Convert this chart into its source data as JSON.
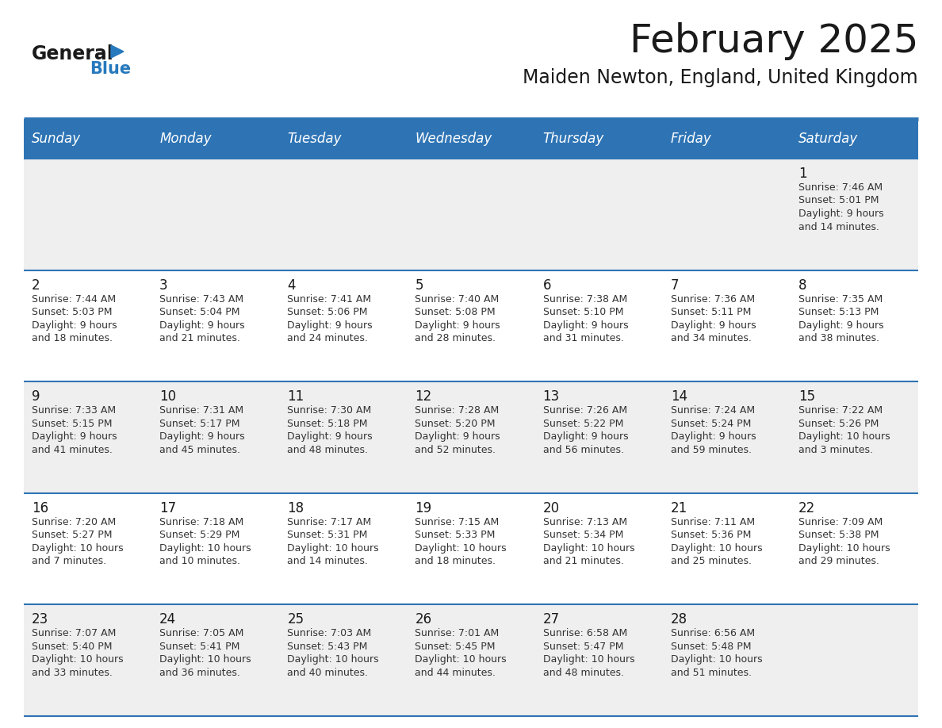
{
  "title": "February 2025",
  "subtitle": "Maiden Newton, England, United Kingdom",
  "header_color": "#2E74B5",
  "header_text_color": "#FFFFFF",
  "day_names": [
    "Sunday",
    "Monday",
    "Tuesday",
    "Wednesday",
    "Thursday",
    "Friday",
    "Saturday"
  ],
  "row_line_color": "#2E74B5",
  "text_color": "#333333",
  "day_number_color": "#1a1a1a",
  "logo_general_color": "#1a1a1a",
  "logo_blue_color": "#2779BD",
  "cell_bg_light": "#EFEFEF",
  "cell_bg_white": "#FFFFFF",
  "calendar_data": [
    [
      null,
      null,
      null,
      null,
      null,
      null,
      {
        "day": 1,
        "sunrise": "7:46 AM",
        "sunset": "5:01 PM",
        "daylight": "9 hours and 14 minutes."
      }
    ],
    [
      {
        "day": 2,
        "sunrise": "7:44 AM",
        "sunset": "5:03 PM",
        "daylight": "9 hours and 18 minutes."
      },
      {
        "day": 3,
        "sunrise": "7:43 AM",
        "sunset": "5:04 PM",
        "daylight": "9 hours and 21 minutes."
      },
      {
        "day": 4,
        "sunrise": "7:41 AM",
        "sunset": "5:06 PM",
        "daylight": "9 hours and 24 minutes."
      },
      {
        "day": 5,
        "sunrise": "7:40 AM",
        "sunset": "5:08 PM",
        "daylight": "9 hours and 28 minutes."
      },
      {
        "day": 6,
        "sunrise": "7:38 AM",
        "sunset": "5:10 PM",
        "daylight": "9 hours and 31 minutes."
      },
      {
        "day": 7,
        "sunrise": "7:36 AM",
        "sunset": "5:11 PM",
        "daylight": "9 hours and 34 minutes."
      },
      {
        "day": 8,
        "sunrise": "7:35 AM",
        "sunset": "5:13 PM",
        "daylight": "9 hours and 38 minutes."
      }
    ],
    [
      {
        "day": 9,
        "sunrise": "7:33 AM",
        "sunset": "5:15 PM",
        "daylight": "9 hours and 41 minutes."
      },
      {
        "day": 10,
        "sunrise": "7:31 AM",
        "sunset": "5:17 PM",
        "daylight": "9 hours and 45 minutes."
      },
      {
        "day": 11,
        "sunrise": "7:30 AM",
        "sunset": "5:18 PM",
        "daylight": "9 hours and 48 minutes."
      },
      {
        "day": 12,
        "sunrise": "7:28 AM",
        "sunset": "5:20 PM",
        "daylight": "9 hours and 52 minutes."
      },
      {
        "day": 13,
        "sunrise": "7:26 AM",
        "sunset": "5:22 PM",
        "daylight": "9 hours and 56 minutes."
      },
      {
        "day": 14,
        "sunrise": "7:24 AM",
        "sunset": "5:24 PM",
        "daylight": "9 hours and 59 minutes."
      },
      {
        "day": 15,
        "sunrise": "7:22 AM",
        "sunset": "5:26 PM",
        "daylight": "10 hours and 3 minutes."
      }
    ],
    [
      {
        "day": 16,
        "sunrise": "7:20 AM",
        "sunset": "5:27 PM",
        "daylight": "10 hours and 7 minutes."
      },
      {
        "day": 17,
        "sunrise": "7:18 AM",
        "sunset": "5:29 PM",
        "daylight": "10 hours and 10 minutes."
      },
      {
        "day": 18,
        "sunrise": "7:17 AM",
        "sunset": "5:31 PM",
        "daylight": "10 hours and 14 minutes."
      },
      {
        "day": 19,
        "sunrise": "7:15 AM",
        "sunset": "5:33 PM",
        "daylight": "10 hours and 18 minutes."
      },
      {
        "day": 20,
        "sunrise": "7:13 AM",
        "sunset": "5:34 PM",
        "daylight": "10 hours and 21 minutes."
      },
      {
        "day": 21,
        "sunrise": "7:11 AM",
        "sunset": "5:36 PM",
        "daylight": "10 hours and 25 minutes."
      },
      {
        "day": 22,
        "sunrise": "7:09 AM",
        "sunset": "5:38 PM",
        "daylight": "10 hours and 29 minutes."
      }
    ],
    [
      {
        "day": 23,
        "sunrise": "7:07 AM",
        "sunset": "5:40 PM",
        "daylight": "10 hours and 33 minutes."
      },
      {
        "day": 24,
        "sunrise": "7:05 AM",
        "sunset": "5:41 PM",
        "daylight": "10 hours and 36 minutes."
      },
      {
        "day": 25,
        "sunrise": "7:03 AM",
        "sunset": "5:43 PM",
        "daylight": "10 hours and 40 minutes."
      },
      {
        "day": 26,
        "sunrise": "7:01 AM",
        "sunset": "5:45 PM",
        "daylight": "10 hours and 44 minutes."
      },
      {
        "day": 27,
        "sunrise": "6:58 AM",
        "sunset": "5:47 PM",
        "daylight": "10 hours and 48 minutes."
      },
      {
        "day": 28,
        "sunrise": "6:56 AM",
        "sunset": "5:48 PM",
        "daylight": "10 hours and 51 minutes."
      },
      null
    ]
  ]
}
